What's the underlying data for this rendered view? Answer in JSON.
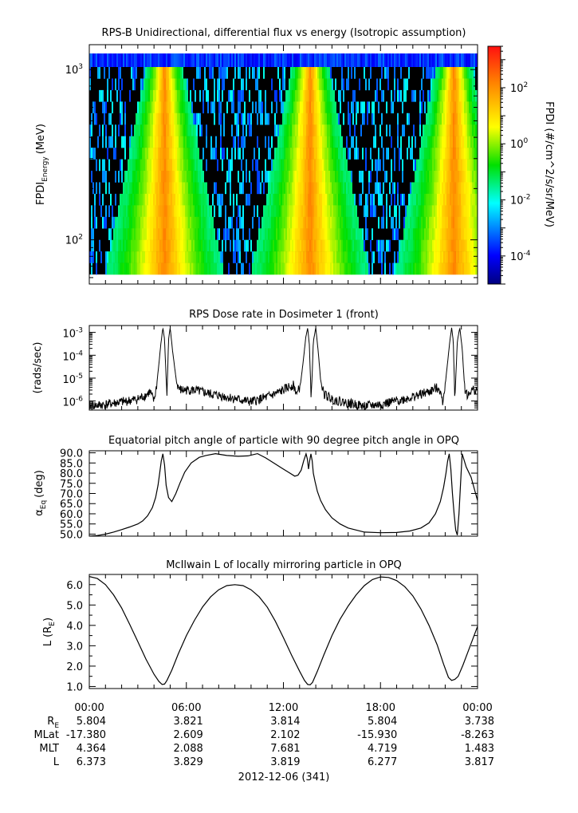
{
  "figure": {
    "date_label": "2012-12-06 (341)",
    "ephemeris": {
      "times": [
        "00:00",
        "06:00",
        "12:00",
        "18:00",
        "00:00"
      ],
      "rows": [
        {
          "label": "R",
          "sub": "E",
          "values": [
            "5.804",
            "3.821",
            "3.814",
            "5.804",
            "3.738"
          ]
        },
        {
          "label": "MLat",
          "sub": "",
          "values": [
            "-17.380",
            "2.609",
            "2.102",
            "-15.930",
            "-8.263"
          ]
        },
        {
          "label": "MLT",
          "sub": "",
          "values": [
            "4.364",
            "2.088",
            "7.681",
            "4.719",
            "1.483"
          ]
        },
        {
          "label": "L",
          "sub": "",
          "values": [
            "6.373",
            "3.829",
            "3.819",
            "6.277",
            "3.817"
          ]
        }
      ]
    }
  },
  "chart_data": [
    {
      "type": "heatmap",
      "title": "RPS-B  Unidirectional, differential flux vs energy (Isotropic assumption)",
      "ylabel": "FPDI",
      "ylabel_sub": "Energy",
      "ylabel_unit": "(MeV)",
      "yscale": "log",
      "ylim": [
        55,
        1400
      ],
      "yticks": [
        {
          "value": 100,
          "base": "10",
          "exp": "2"
        },
        {
          "value": 1000,
          "base": "10",
          "exp": "3"
        }
      ],
      "xlim_hours": [
        0,
        24
      ],
      "colorbar": {
        "label": "FPDI (#/cm^2/s/sr/MeV)",
        "scale": "log",
        "range": [
          1e-05,
          3000
        ],
        "ticks": [
          {
            "value": 0.0001,
            "base": "10",
            "exp": "-4"
          },
          {
            "value": 0.01,
            "base": "10",
            "exp": "-2"
          },
          {
            "value": 1,
            "base": "10",
            "exp": "0"
          },
          {
            "value": 100,
            "base": "10",
            "exp": "2"
          }
        ]
      },
      "passes_hours": [
        4.6,
        13.6,
        22.5
      ]
    },
    {
      "type": "line",
      "title": "RPS  Dose rate in Dosimeter 1 (front)",
      "ylabel": "(rads/sec)",
      "yscale": "log",
      "ylim": [
        4e-07,
        0.002
      ],
      "yticks": [
        {
          "value": 1e-06,
          "base": "10",
          "exp": "-6"
        },
        {
          "value": 1e-05,
          "base": "10",
          "exp": "-5"
        },
        {
          "value": 0.0001,
          "base": "10",
          "exp": "-4"
        },
        {
          "value": 0.001,
          "base": "10",
          "exp": "-3"
        }
      ],
      "xlim_hours": [
        0,
        24
      ],
      "x": [
        0,
        1,
        2,
        3,
        3.5,
        3.75,
        4.0,
        4.15,
        4.3,
        4.42,
        4.55,
        4.65,
        4.8,
        4.9,
        5.0,
        5.15,
        5.4,
        5.6,
        6.5,
        7.5,
        8.5,
        10,
        11,
        11.8,
        12.3,
        12.6,
        12.85,
        13.05,
        13.25,
        13.38,
        13.5,
        13.6,
        13.72,
        13.85,
        14.0,
        14.15,
        14.3,
        14.5,
        15.0,
        16,
        17,
        18,
        19,
        20,
        21,
        21.6,
        21.85,
        22.0,
        22.15,
        22.3,
        22.4,
        22.5,
        22.6,
        22.75,
        22.9,
        23.05,
        23.2,
        23.4,
        23.6,
        24
      ],
      "y": [
        6e-07,
        7e-07,
        9e-07,
        1.2e-06,
        1.8e-06,
        2.5e-06,
        1e-06,
        4e-06,
        4e-05,
        0.0003,
        0.0016,
        0.0005,
        1.5e-06,
        0.0005,
        0.0016,
        0.00015,
        6e-06,
        3e-06,
        3e-06,
        2e-06,
        1.5e-06,
        9e-07,
        1.5e-06,
        2.5e-06,
        4e-06,
        5e-06,
        2e-06,
        5e-06,
        8e-05,
        0.0006,
        0.0016,
        0.0003,
        1.2e-06,
        0.0004,
        0.0016,
        0.00015,
        8e-06,
        2e-06,
        1.2e-06,
        8e-07,
        6e-07,
        7e-07,
        1e-06,
        1.5e-06,
        2.5e-06,
        4e-06,
        1e-06,
        5e-06,
        5e-05,
        0.0005,
        0.0016,
        0.0004,
        1.2e-06,
        0.0004,
        0.0016,
        0.0002,
        4e-06,
        1.5e-06,
        3e-06,
        3e-06
      ]
    },
    {
      "type": "line",
      "title": "Equatorial pitch angle of particle with 90 degree pitch angle in OPQ",
      "ylabel": "α",
      "ylabel_sub": "Eq",
      "ylabel_unit": "(deg)",
      "ylim": [
        49,
        91
      ],
      "yticks": [
        50,
        55,
        60,
        65,
        70,
        75,
        80,
        85,
        90
      ],
      "xlim_hours": [
        0,
        24
      ],
      "x": [
        0,
        0.5,
        1,
        1.5,
        2,
        2.5,
        3,
        3.3,
        3.6,
        3.9,
        4.1,
        4.25,
        4.35,
        4.45,
        4.55,
        4.65,
        4.75,
        4.9,
        5.1,
        5.35,
        5.6,
        5.9,
        6.3,
        6.8,
        7.2,
        7.8,
        8.5,
        9.2,
        9.8,
        10.4,
        10.9,
        11.4,
        11.9,
        12.3,
        12.7,
        12.9,
        13.1,
        13.25,
        13.4,
        13.48,
        13.55,
        13.62,
        13.7,
        13.78,
        13.85,
        13.95,
        14.1,
        14.3,
        14.6,
        15.0,
        15.5,
        16,
        17,
        18,
        19,
        19.8,
        20.5,
        21,
        21.4,
        21.7,
        21.9,
        22.05,
        22.15,
        22.25,
        22.35,
        22.45,
        22.55,
        22.65,
        22.75,
        22.85,
        22.95,
        23.05,
        23.3,
        23.6,
        24
      ],
      "y": [
        49.0,
        49.3,
        50.0,
        51.0,
        52.2,
        53.5,
        55.0,
        56.5,
        59.0,
        63.0,
        68.0,
        74.0,
        80.0,
        86.0,
        89.5,
        84.0,
        74.0,
        68.0,
        66.0,
        70.0,
        75.0,
        80.5,
        85.0,
        87.8,
        88.7,
        89.6,
        88.7,
        88.3,
        88.5,
        89.6,
        87.5,
        85.0,
        82.5,
        80.5,
        78.5,
        79.0,
        81.5,
        86.0,
        89.5,
        87.0,
        82.0,
        86.0,
        89.5,
        86.0,
        80.0,
        76.0,
        71.0,
        66.5,
        62.0,
        58.0,
        55.0,
        53.0,
        51.0,
        50.7,
        50.8,
        51.5,
        53.0,
        55.5,
        60.0,
        66.0,
        73.0,
        80.0,
        86.0,
        89.5,
        82.0,
        70.0,
        60.0,
        52.0,
        49.5,
        60.0,
        75.0,
        89.5,
        83.0,
        78.0,
        66.5
      ]
    },
    {
      "type": "line",
      "title": "McIlwain L of locally mirroring particle in OPQ",
      "ylabel": "L",
      "ylabel_unit_sub": "E",
      "ylim": [
        0.9,
        6.5
      ],
      "yticks": [
        1.0,
        2.0,
        3.0,
        4.0,
        5.0,
        6.0
      ],
      "yticks_minor": [
        1.5,
        2.5,
        3.5,
        4.5,
        5.5
      ],
      "xlim_hours": [
        0,
        24
      ],
      "x": [
        0,
        0.5,
        1,
        1.5,
        2,
        2.5,
        3,
        3.5,
        4,
        4.3,
        4.5,
        4.65,
        4.8,
        5.1,
        5.5,
        6,
        6.5,
        7,
        7.5,
        8,
        8.5,
        9,
        9.5,
        10,
        10.5,
        11,
        11.5,
        12,
        12.5,
        13,
        13.3,
        13.5,
        13.65,
        13.8,
        14.1,
        14.5,
        15,
        15.5,
        16,
        16.5,
        17,
        17.5,
        18,
        18.5,
        19,
        19.5,
        20,
        20.5,
        21,
        21.5,
        21.9,
        22.2,
        22.4,
        22.6,
        22.8,
        23.1,
        23.5,
        24
      ],
      "y": [
        6.4,
        6.3,
        6.0,
        5.5,
        4.85,
        4.05,
        3.2,
        2.35,
        1.6,
        1.25,
        1.1,
        1.12,
        1.3,
        1.8,
        2.6,
        3.5,
        4.25,
        4.9,
        5.4,
        5.75,
        5.95,
        6.0,
        5.95,
        5.75,
        5.4,
        4.9,
        4.2,
        3.4,
        2.55,
        1.75,
        1.3,
        1.1,
        1.08,
        1.2,
        1.75,
        2.55,
        3.5,
        4.3,
        4.95,
        5.5,
        5.95,
        6.25,
        6.38,
        6.35,
        6.2,
        5.9,
        5.45,
        4.8,
        4.0,
        3.05,
        2.1,
        1.45,
        1.3,
        1.35,
        1.5,
        2.05,
        2.9,
        3.95
      ]
    }
  ]
}
